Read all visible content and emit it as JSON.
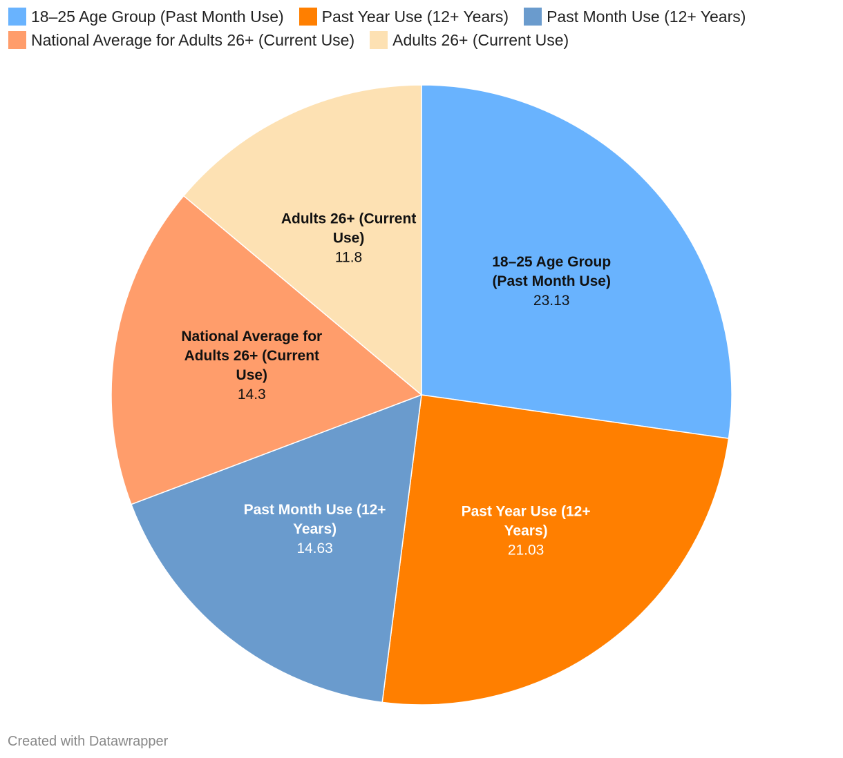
{
  "chart_data": {
    "type": "pie",
    "categories": [
      "18–25 Age Group (Past Month Use)",
      "Past Year Use (12+ Years)",
      "Past Month Use (12+ Years)",
      "National Average for Adults 26+ (Current Use)",
      "Adults 26+ (Current Use)"
    ],
    "values": [
      23.13,
      21.03,
      14.63,
      14.3,
      11.8
    ],
    "value_labels": [
      "23.13",
      "21.03",
      "14.63",
      "14.3",
      "11.8"
    ],
    "label_lines": [
      [
        "18–25 Age Group",
        "(Past Month Use)"
      ],
      [
        "Past Year Use (12+",
        "Years)"
      ],
      [
        "Past Month Use (12+",
        "Years)"
      ],
      [
        "National Average for",
        "Adults 26+ (Current",
        "Use)"
      ],
      [
        "Adults 26+ (Current",
        "Use)"
      ]
    ],
    "colors": [
      "#69b3fe",
      "#ff7f00",
      "#6a9bcd",
      "#ff9d6b",
      "#fde1b3"
    ],
    "label_colors": [
      "#111111",
      "#ffffff",
      "#ffffff",
      "#111111",
      "#111111"
    ],
    "title": "",
    "legend_position": "top-left",
    "start_angle_deg": 0,
    "direction": "clockwise"
  },
  "footer": {
    "credit": "Created with Datawrapper"
  }
}
